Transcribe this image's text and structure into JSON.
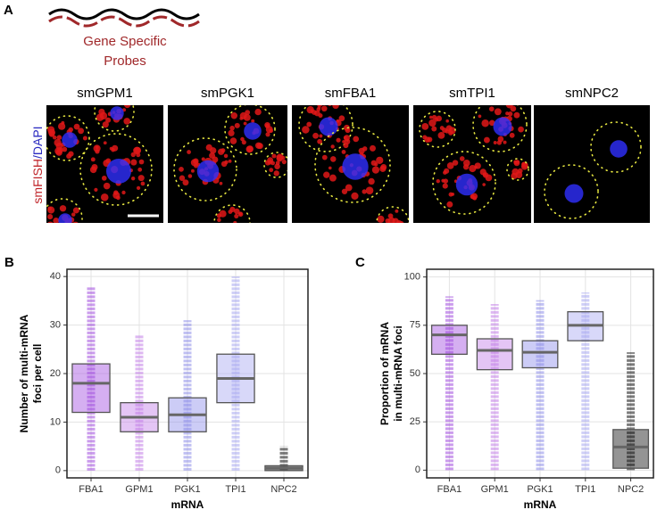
{
  "panel_a": {
    "letter": "A",
    "probe_label": [
      "Gene Specific",
      "Probes"
    ],
    "side_label": {
      "fish": "smFISH",
      "slash": "/",
      "dapi": "DAPI"
    },
    "images": [
      "smGPM1",
      "smPGK1",
      "smFBA1",
      "smTPI1",
      "smNPC2"
    ]
  },
  "chart_data": [
    {
      "type": "box",
      "letter": "B",
      "xlabel": "mRNA",
      "ylabel": [
        "Number of multi-mRNA",
        "foci per cell"
      ],
      "categories": [
        "FBA1",
        "GPM1",
        "PGK1",
        "TPI1",
        "NPC2"
      ],
      "colors": [
        "#a24de0",
        "#c47fe8",
        "#8f8fea",
        "#a8a8f2",
        "#111111"
      ],
      "boxes": [
        {
          "min": 0,
          "q1": 12,
          "median": 18,
          "q3": 22,
          "max": 38
        },
        {
          "min": 0,
          "q1": 8,
          "median": 11,
          "q3": 14,
          "max": 28
        },
        {
          "min": 0,
          "q1": 8,
          "median": 11.5,
          "q3": 15,
          "max": 31
        },
        {
          "min": 0,
          "q1": 14,
          "median": 19,
          "q3": 24,
          "max": 40
        },
        {
          "min": 0,
          "q1": 0,
          "median": 0.5,
          "q3": 1,
          "max": 5
        }
      ],
      "ylim": [
        -1.5,
        41.5
      ],
      "yticks": [
        0,
        10,
        20,
        30,
        40
      ],
      "grid": true
    },
    {
      "type": "box",
      "letter": "C",
      "xlabel": "mRNA",
      "ylabel": [
        "Proportion of mRNA",
        "in multi-mRNA foci"
      ],
      "categories": [
        "FBA1",
        "GPM1",
        "PGK1",
        "TPI1",
        "NPC2"
      ],
      "colors": [
        "#a24de0",
        "#c47fe8",
        "#8f8fea",
        "#a8a8f2",
        "#111111"
      ],
      "boxes": [
        {
          "min": 0,
          "q1": 60,
          "median": 70,
          "q3": 75,
          "max": 90
        },
        {
          "min": 0,
          "q1": 52,
          "median": 62,
          "q3": 68,
          "max": 86
        },
        {
          "min": 0,
          "q1": 53,
          "median": 61,
          "q3": 67,
          "max": 88
        },
        {
          "min": 0,
          "q1": 67,
          "median": 75,
          "q3": 82,
          "max": 92
        },
        {
          "min": 0,
          "q1": 1,
          "median": 12,
          "q3": 21,
          "max": 61
        }
      ],
      "ylim": [
        -4,
        104
      ],
      "yticks": [
        0,
        25,
        50,
        75,
        100
      ],
      "grid": true
    }
  ]
}
